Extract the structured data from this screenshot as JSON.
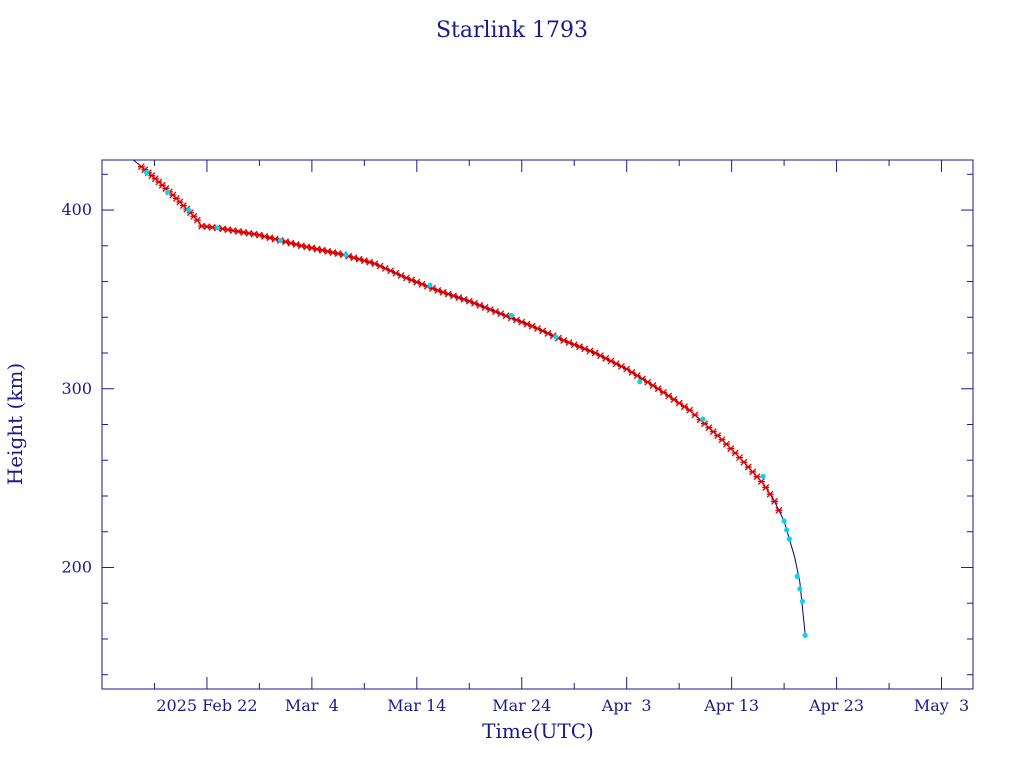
{
  "chart_data": {
    "type": "scatter",
    "title": "Starlink 1793",
    "xlabel": "Time(UTC)",
    "ylabel": "Height (km)",
    "x_unit": "date",
    "xlim": [
      "2025-02-12T00:00",
      "2025-05-06T00:00"
    ],
    "ylim": [
      132,
      428
    ],
    "x_ticks": [
      {
        "date": "2025-02-22",
        "label": "2025 Feb 22"
      },
      {
        "date": "2025-03-04",
        "label": "Mar  4"
      },
      {
        "date": "2025-03-14",
        "label": "Mar 14"
      },
      {
        "date": "2025-03-24",
        "label": "Mar 24"
      },
      {
        "date": "2025-04-03",
        "label": "Apr  3"
      },
      {
        "date": "2025-04-13",
        "label": "Apr 13"
      },
      {
        "date": "2025-04-23",
        "label": "Apr 23"
      },
      {
        "date": "2025-05-03",
        "label": "May  3"
      }
    ],
    "y_ticks": [
      200,
      300,
      400
    ],
    "y_minor_step": 20,
    "x_minor_days": 5,
    "grid": false,
    "legend": "none",
    "colors": {
      "axis": "#1a1a8c",
      "text": "#1a1a8c",
      "line": "#000080",
      "red_marker": "#dd0000",
      "cyan_marker": "#00d8ee"
    },
    "fit_curve": [
      {
        "x": "2025-02-15T00:00",
        "y": 428
      },
      {
        "x": "2025-02-17T00:00",
        "y": 418
      },
      {
        "x": "2025-02-19T00:00",
        "y": 407
      },
      {
        "x": "2025-02-21T00:00",
        "y": 395
      },
      {
        "x": "2025-02-21T12:00",
        "y": 391
      },
      {
        "x": "2025-02-23T00:00",
        "y": 390
      },
      {
        "x": "2025-02-27T00:00",
        "y": 386
      },
      {
        "x": "2025-03-03T00:00",
        "y": 380
      },
      {
        "x": "2025-03-07T00:00",
        "y": 375
      },
      {
        "x": "2025-03-10T00:00",
        "y": 370
      },
      {
        "x": "2025-03-13T00:00",
        "y": 362
      },
      {
        "x": "2025-03-16T00:00",
        "y": 355
      },
      {
        "x": "2025-03-19T00:00",
        "y": 349
      },
      {
        "x": "2025-03-22T00:00",
        "y": 342
      },
      {
        "x": "2025-03-25T00:00",
        "y": 335
      },
      {
        "x": "2025-03-28T00:00",
        "y": 327
      },
      {
        "x": "2025-03-31T00:00",
        "y": 320
      },
      {
        "x": "2025-04-03T00:00",
        "y": 311
      },
      {
        "x": "2025-04-06T00:00",
        "y": 300
      },
      {
        "x": "2025-04-09T00:00",
        "y": 288
      },
      {
        "x": "2025-04-12T00:00",
        "y": 272
      },
      {
        "x": "2025-04-14T00:00",
        "y": 260
      },
      {
        "x": "2025-04-16T00:00",
        "y": 247
      },
      {
        "x": "2025-04-17T00:00",
        "y": 238
      },
      {
        "x": "2025-04-18T00:00",
        "y": 226
      },
      {
        "x": "2025-04-19T00:00",
        "y": 206
      },
      {
        "x": "2025-04-19T12:00",
        "y": 192
      },
      {
        "x": "2025-04-20T00:00",
        "y": 163
      }
    ],
    "cyan_points": [
      {
        "x": "2025-02-16T06:00",
        "y": 421
      },
      {
        "x": "2025-02-18T06:00",
        "y": 410
      },
      {
        "x": "2025-02-20T06:00",
        "y": 400
      },
      {
        "x": "2025-02-23T00:00",
        "y": 390
      },
      {
        "x": "2025-03-01T00:00",
        "y": 383
      },
      {
        "x": "2025-03-07T06:00",
        "y": 375
      },
      {
        "x": "2025-03-15T06:00",
        "y": 358
      },
      {
        "x": "2025-03-23T00:00",
        "y": 341
      },
      {
        "x": "2025-03-27T06:00",
        "y": 329
      },
      {
        "x": "2025-04-04T06:00",
        "y": 304
      },
      {
        "x": "2025-04-10T06:00",
        "y": 283
      },
      {
        "x": "2025-04-16T00:00",
        "y": 251
      },
      {
        "x": "2025-04-18T00:00",
        "y": 226
      },
      {
        "x": "2025-04-18T06:00",
        "y": 221
      },
      {
        "x": "2025-04-18T12:00",
        "y": 216
      },
      {
        "x": "2025-04-19T06:00",
        "y": 195
      },
      {
        "x": "2025-04-19T12:00",
        "y": 188
      },
      {
        "x": "2025-04-19T18:00",
        "y": 181
      },
      {
        "x": "2025-04-20T00:00",
        "y": 162
      }
    ],
    "red_segments": [
      {
        "from": "2025-02-15T18:00",
        "to": "2025-02-21T06:00",
        "step_hours": 8
      },
      {
        "from": "2025-02-21T12:00",
        "to": "2025-04-09T12:00",
        "step_hours": 12
      },
      {
        "from": "2025-04-10T00:00",
        "to": "2025-04-17T12:00",
        "step_hours": 10
      }
    ]
  }
}
